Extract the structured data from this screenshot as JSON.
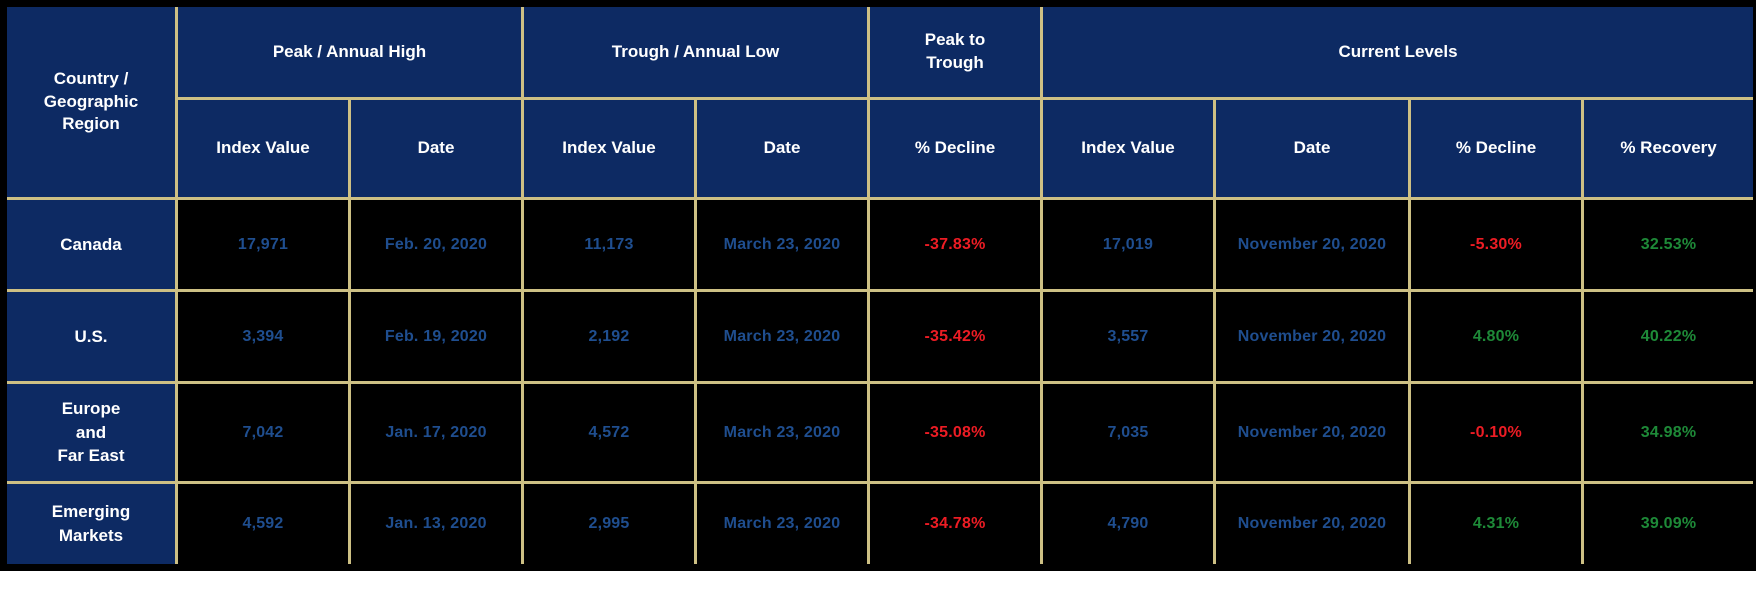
{
  "table": {
    "corner_header": "Country /\nGeographic\nRegion",
    "groups": {
      "peak": "Peak / Annual High",
      "trough": "Trough / Annual Low",
      "peak_to_trough": "Peak to\nTrough",
      "current": "Current Levels"
    },
    "sub_headers": {
      "peak_index": "Index Value",
      "peak_date": "Date",
      "trough_index": "Index Value",
      "trough_date": "Date",
      "ptt_decline": "% Decline",
      "cur_index": "Index Value",
      "cur_date": "Date",
      "cur_decline": "% Decline",
      "cur_recovery": "% Recovery"
    },
    "rows": [
      {
        "region": "Canada",
        "peak_index": "17,971",
        "peak_date": "Feb. 20, 2020",
        "trough_index": "11,173",
        "trough_date": "March 23, 2020",
        "peak_to_trough_decline": "-37.83%",
        "current_index": "17,019",
        "current_date": "November 20, 2020",
        "current_decline": "-5.30%",
        "current_recovery": "32.53%"
      },
      {
        "region": "U.S.",
        "peak_index": "3,394",
        "peak_date": "Feb. 19, 2020",
        "trough_index": "2,192",
        "trough_date": "March 23, 2020",
        "peak_to_trough_decline": "-35.42%",
        "current_index": "3,557",
        "current_date": "November 20, 2020",
        "current_decline": "4.80%",
        "current_recovery": "40.22%"
      },
      {
        "region": "Europe\nand\nFar East",
        "peak_index": "7,042",
        "peak_date": "Jan. 17, 2020",
        "trough_index": "4,572",
        "trough_date": "March 23, 2020",
        "peak_to_trough_decline": "-35.08%",
        "current_index": "7,035",
        "current_date": "November 20, 2020",
        "current_decline": "-0.10%",
        "current_recovery": "34.98%"
      },
      {
        "region": "Emerging\nMarkets",
        "peak_index": "4,592",
        "peak_date": "Jan. 13, 2020",
        "trough_index": "2,995",
        "trough_date": "March 23, 2020",
        "peak_to_trough_decline": "-34.78%",
        "current_index": "4,790",
        "current_date": "November 20, 2020",
        "current_decline": "4.31%",
        "current_recovery": "39.09%"
      }
    ]
  },
  "colors": {
    "header_navy": "#0d2a63",
    "grid_gold": "#cdc084",
    "cell_black": "#000000",
    "value_blue": "#1f4e8f",
    "negative_red": "#ed1c24",
    "positive_green": "#1e8a38",
    "header_text": "#ffffff"
  }
}
